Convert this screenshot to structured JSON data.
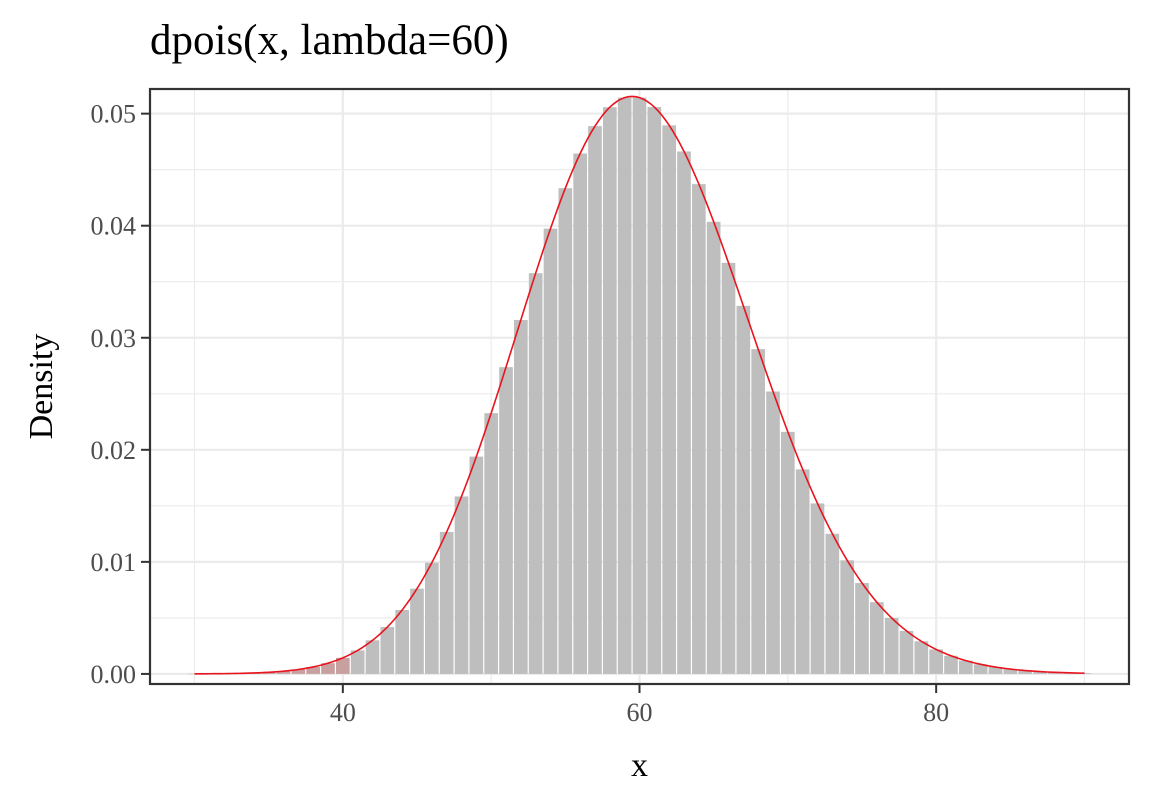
{
  "chart_data": {
    "type": "bar",
    "title": "dpois(x, lambda=60)",
    "xlabel": "x",
    "ylabel": "Density",
    "lambda": 60,
    "x_range": [
      30,
      90
    ],
    "highlight_max": 40,
    "xlim": [
      27,
      93
    ],
    "ylim": [
      -0.0009,
      0.0522
    ],
    "x_ticks": [
      40,
      60,
      80
    ],
    "x_tick_labels": [
      "40",
      "60",
      "80"
    ],
    "y_ticks": [
      0.0,
      0.01,
      0.02,
      0.03,
      0.04,
      0.05
    ],
    "y_tick_labels": [
      "0.00",
      "0.01",
      "0.02",
      "0.03",
      "0.04",
      "0.05"
    ],
    "grid": true,
    "colors": {
      "bar": "#bebebe",
      "bar_highlight": "#c8a0a0",
      "curve": "#e8141e",
      "grid": "#ebebeb",
      "border": "#333333"
    }
  }
}
